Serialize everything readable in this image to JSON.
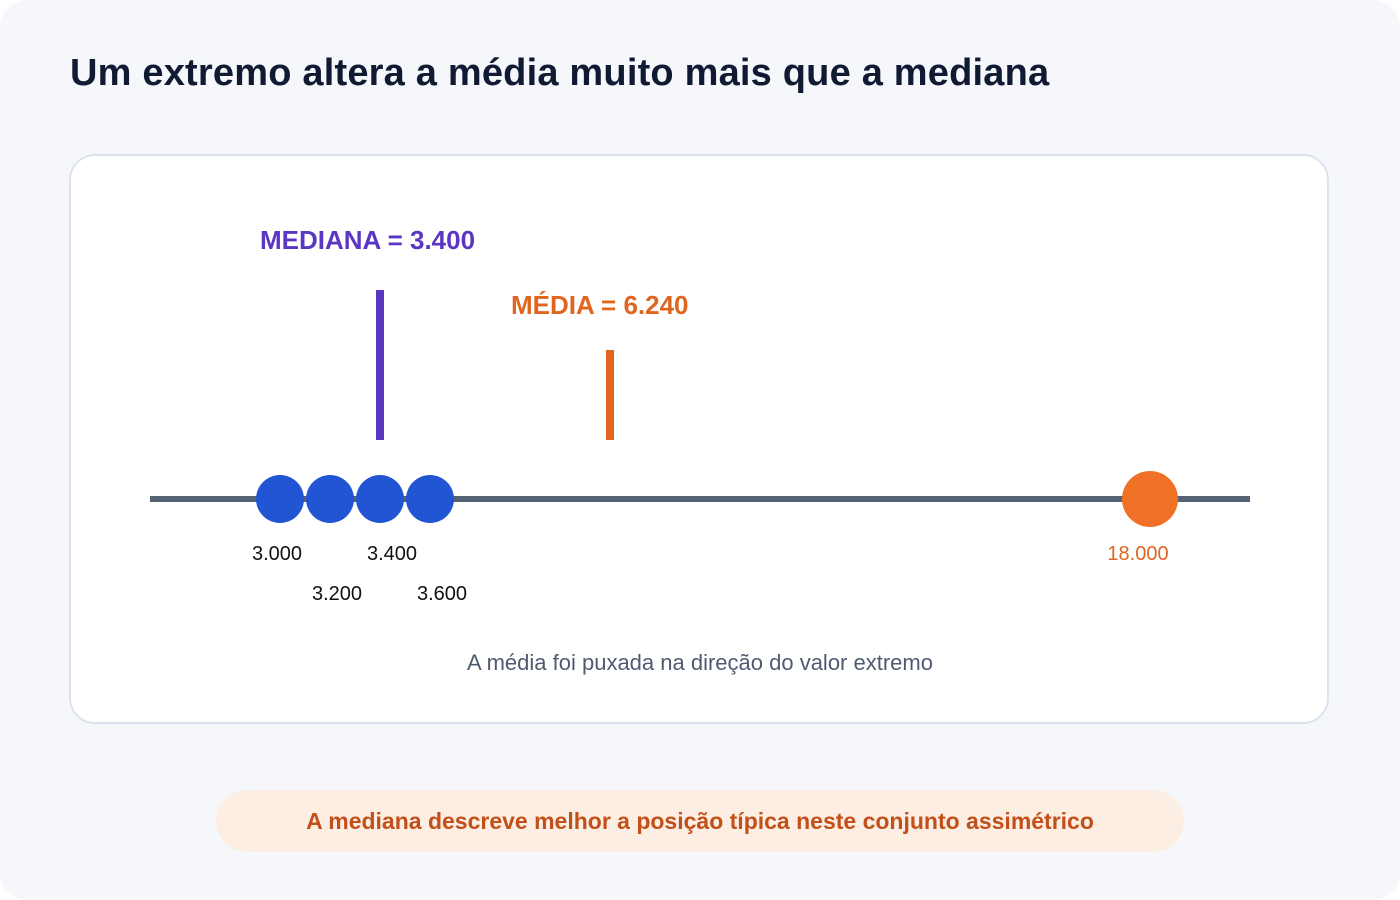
{
  "title": "Um extremo altera a média muito mais que a mediana",
  "diagram": {
    "median_label": "MEDIANA = 3.400",
    "mean_label": "MÉDIA = 6.240",
    "points": [
      {
        "value": "3.000",
        "color": "#2255d4"
      },
      {
        "value": "3.200",
        "color": "#2255d4"
      },
      {
        "value": "3.400",
        "color": "#2255d4"
      },
      {
        "value": "3.600",
        "color": "#2255d4"
      },
      {
        "value": "18.000",
        "color": "#f07126"
      }
    ],
    "caption": "A média foi puxada na direção do valor extremo"
  },
  "callout": "A mediana descreve melhor a posição típica neste conjunto assimétrico",
  "colors": {
    "median": "#5b36c4",
    "mean": "#e0651f",
    "typical_point": "#2255d4",
    "outlier_point": "#f07126",
    "axis": "#556274",
    "callout_bg": "#fdeee3",
    "callout_text": "#c2501a"
  }
}
